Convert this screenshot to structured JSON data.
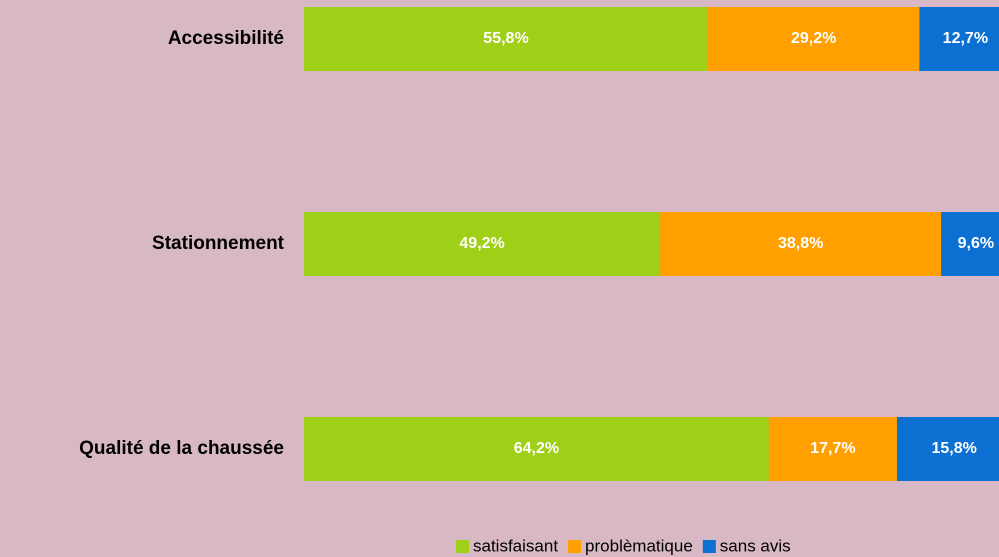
{
  "chart_data": {
    "type": "stacked-bar-horizontal",
    "categories": [
      "Accessibilité",
      "Stationnement",
      "Qualité de la chaussée"
    ],
    "series": [
      {
        "name": "satisfaisant",
        "color": "#9fcf17",
        "values": [
          55.8,
          49.2,
          64.2
        ],
        "value_labels": [
          "55,8%",
          "49,2%",
          "64,2%"
        ]
      },
      {
        "name": "problèmatique",
        "color": "#ff9f00",
        "values": [
          29.2,
          38.8,
          17.7
        ],
        "value_labels": [
          "29,2%",
          "38,8%",
          "17,7%"
        ]
      },
      {
        "name": "sans avis",
        "color": "#0c6fd2",
        "values": [
          12.7,
          9.6,
          15.8
        ],
        "value_labels": [
          "12,7%",
          "9,6%",
          "15,8%"
        ]
      }
    ],
    "legend": "bottom"
  }
}
